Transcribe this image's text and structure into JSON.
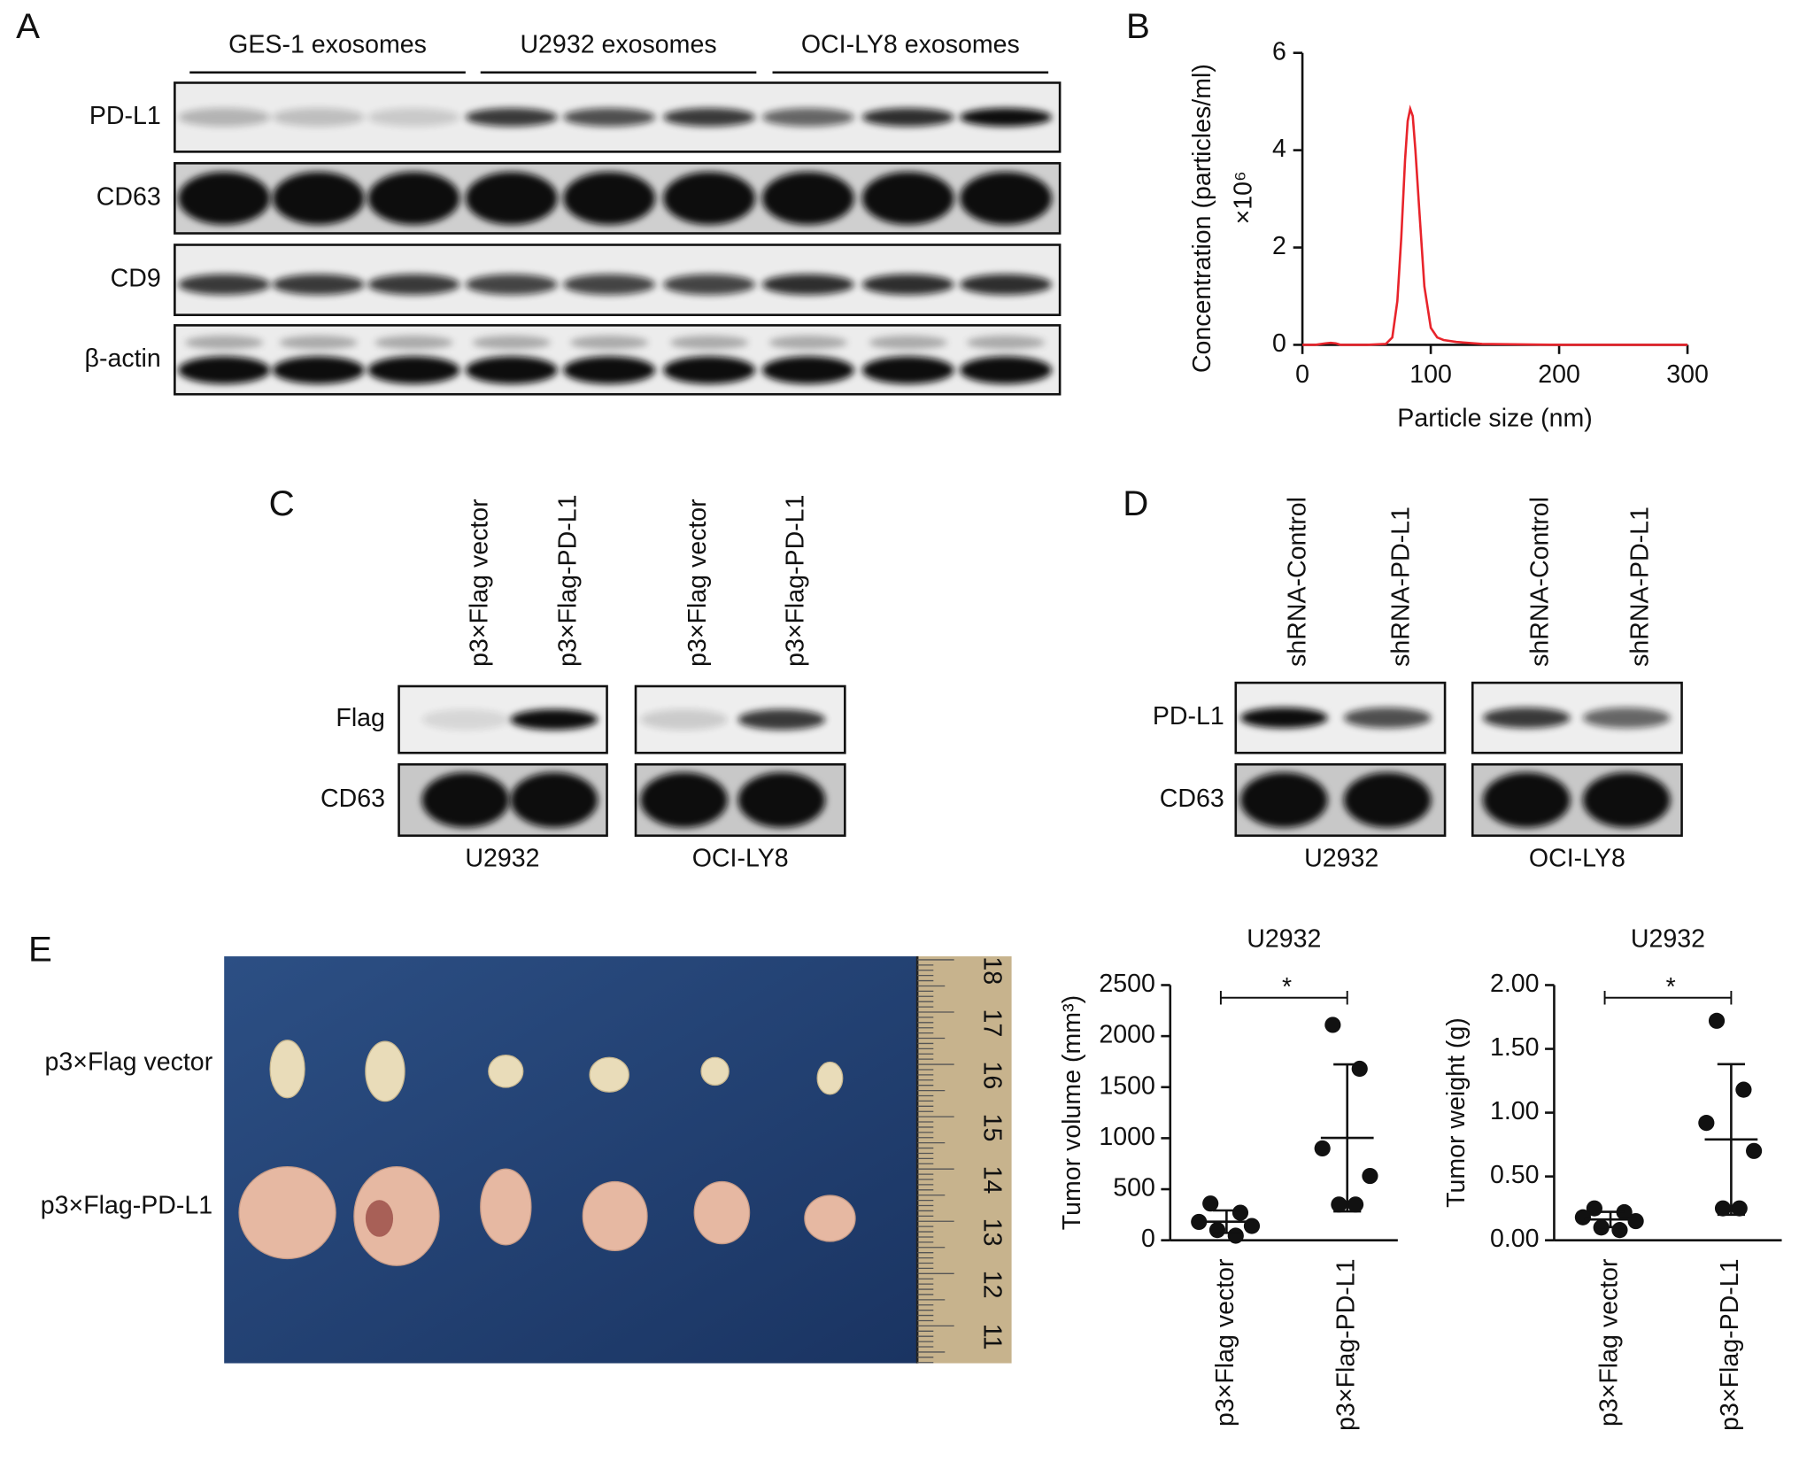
{
  "panels": {
    "A": {
      "label": "A",
      "groups": [
        "GES-1 exosomes",
        "U2932 exosomes",
        "OCI-LY8 exosomes"
      ],
      "rows": [
        "PD-L1",
        "CD63",
        "CD9",
        "β-actin"
      ]
    },
    "C": {
      "label": "C",
      "lanes": [
        "p3×Flag vector",
        "p3×Flag-PD-L1",
        "p3×Flag vector",
        "p3×Flag-PD-L1"
      ],
      "rows": [
        "Flag",
        "CD63"
      ],
      "cells": [
        "U2932",
        "OCI-LY8"
      ]
    },
    "D": {
      "label": "D",
      "lanes": [
        "shRNA-Control",
        "shRNA-PD-L1",
        "shRNA-Control",
        "shRNA-PD-L1"
      ],
      "rows": [
        "PD-L1",
        "CD63"
      ],
      "cells": [
        "U2932",
        "OCI-LY8"
      ]
    },
    "E": {
      "label": "E",
      "photo_rows": [
        "p3×Flag vector",
        "p3×Flag-PD-L1"
      ],
      "ruler": [
        11,
        12,
        13,
        14,
        15,
        16,
        17,
        18
      ]
    }
  },
  "chart_data": [
    {
      "type": "line",
      "label": "B",
      "ylabel": "Concentration (particles/ml)",
      "yscale_label": "×10⁶",
      "xlabel": "Particle size (nm)",
      "x": [
        0,
        10,
        18,
        22,
        26,
        30,
        50,
        65,
        70,
        74,
        77,
        80,
        82,
        84,
        86,
        88,
        91,
        95,
        100,
        105,
        110,
        120,
        140,
        200,
        300
      ],
      "values": [
        0,
        0,
        0.03,
        0.04,
        0.03,
        0,
        0,
        0.02,
        0.15,
        0.9,
        2.2,
        3.8,
        4.6,
        4.85,
        4.7,
        4.0,
        2.8,
        1.2,
        0.35,
        0.15,
        0.1,
        0.06,
        0.02,
        0,
        0
      ],
      "color": "#e8242b",
      "xlim": [
        0,
        300
      ],
      "xticks": [
        0,
        100,
        200,
        300
      ],
      "ylim": [
        0,
        6
      ],
      "yticks": [
        0,
        2,
        4,
        6
      ]
    },
    {
      "type": "dot",
      "title": "U2932",
      "ylabel": "Tumor volume (mm³)",
      "categories": [
        "p3×Flag vector",
        "p3×Flag-PD-L1"
      ],
      "values": [
        [
          360,
          270,
          180,
          140,
          100,
          45
        ],
        [
          2110,
          1680,
          900,
          630,
          350,
          350
        ]
      ],
      "means": [
        182,
        1003
      ],
      "sd": [
        110,
        720
      ],
      "annotation": "*",
      "ylim": [
        0,
        2500
      ],
      "yticks": [
        0,
        500,
        1000,
        1500,
        2000,
        2500
      ]
    },
    {
      "type": "dot",
      "title": "U2932",
      "ylabel": "Tumor weight (g)",
      "categories": [
        "p3×Flag vector",
        "p3×Flag-PD-L1"
      ],
      "values": [
        [
          0.25,
          0.22,
          0.18,
          0.15,
          0.1,
          0.08
        ],
        [
          1.72,
          1.18,
          0.92,
          0.7,
          0.25,
          0.25
        ]
      ],
      "means": [
        0.163,
        0.79
      ],
      "sd": [
        0.06,
        0.59
      ],
      "annotation": "*",
      "ylim": [
        0,
        2
      ],
      "yticks": [
        {
          "value": 0,
          "label": "0.00"
        },
        {
          "value": 0.5,
          "label": "0.50"
        },
        {
          "value": 1,
          "label": "1.00"
        },
        {
          "value": 1.5,
          "label": "1.50"
        },
        {
          "value": 2,
          "label": "2.00"
        }
      ]
    }
  ]
}
